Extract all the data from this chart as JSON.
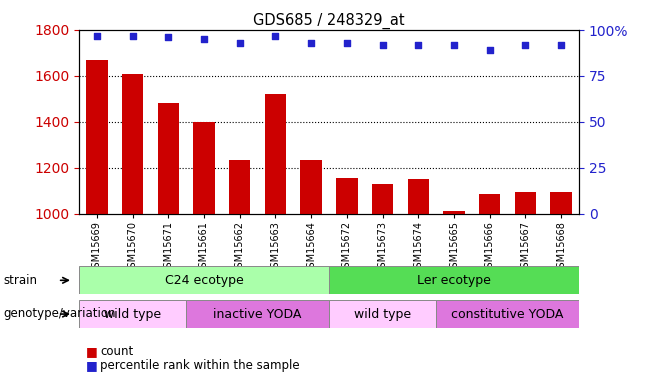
{
  "title": "GDS685 / 248329_at",
  "samples": [
    "GSM15669",
    "GSM15670",
    "GSM15671",
    "GSM15661",
    "GSM15662",
    "GSM15663",
    "GSM15664",
    "GSM15672",
    "GSM15673",
    "GSM15674",
    "GSM15665",
    "GSM15666",
    "GSM15667",
    "GSM15668"
  ],
  "bar_values": [
    1670,
    1610,
    1480,
    1400,
    1235,
    1520,
    1235,
    1155,
    1130,
    1150,
    1010,
    1085,
    1095,
    1095
  ],
  "dot_values": [
    97,
    97,
    96,
    95,
    93,
    97,
    93,
    93,
    92,
    92,
    92,
    89,
    92,
    92
  ],
  "bar_color": "#cc0000",
  "dot_color": "#2222cc",
  "ylim_left": [
    1000,
    1800
  ],
  "ylim_right": [
    0,
    100
  ],
  "yticks_left": [
    1000,
    1200,
    1400,
    1600,
    1800
  ],
  "yticks_right": [
    0,
    25,
    50,
    75,
    100
  ],
  "grid_values": [
    1200,
    1400,
    1600
  ],
  "c24_color": "#aaffaa",
  "ler_color": "#55dd55",
  "wt_color": "#ffccff",
  "yoda_color": "#dd77dd",
  "legend_items": [
    {
      "label": "count",
      "color": "#cc0000"
    },
    {
      "label": "percentile rank within the sample",
      "color": "#2222cc"
    }
  ],
  "label_strain": "strain",
  "label_genotype": "genotype/variation",
  "background_color": "#ffffff",
  "tick_color_left": "#cc0000",
  "tick_color_right": "#2222cc"
}
